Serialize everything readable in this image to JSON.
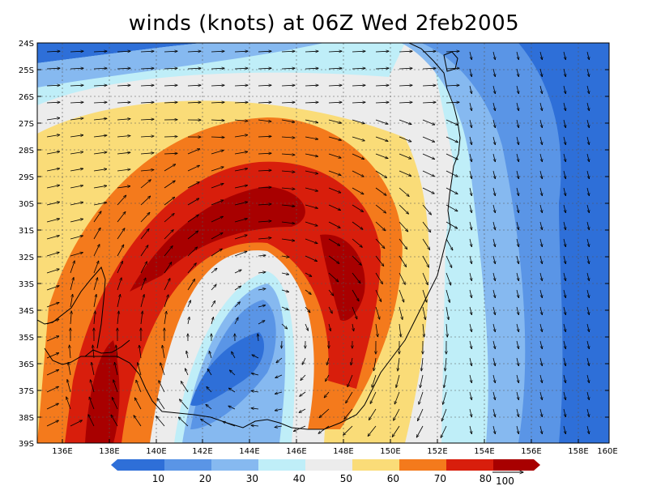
{
  "title": "winds (knots) at 06Z Wed 2feb2005",
  "colors": {
    "c10": "#2e6fd8",
    "c20": "#5a95e6",
    "c30": "#86b9f0",
    "c40": "#bfeef8",
    "c50": "#ececec",
    "c60": "#fadc78",
    "c70": "#f47a1c",
    "c80": "#d81e0c",
    "c90": "#a80000"
  },
  "lat_labels": [
    "24S",
    "25S",
    "26S",
    "27S",
    "28S",
    "29S",
    "30S",
    "31S",
    "32S",
    "33S",
    "34S",
    "35S",
    "36S",
    "37S",
    "38S",
    "39S"
  ],
  "lon_labels": [
    "136E",
    "138E",
    "140E",
    "142E",
    "144E",
    "146E",
    "148E",
    "150E",
    "152E",
    "154E",
    "156E",
    "158E",
    "160E"
  ],
  "colorbar_labels": [
    "10",
    "20",
    "30",
    "40",
    "50",
    "60",
    "70",
    "80"
  ],
  "vector_ref_label": "100"
}
